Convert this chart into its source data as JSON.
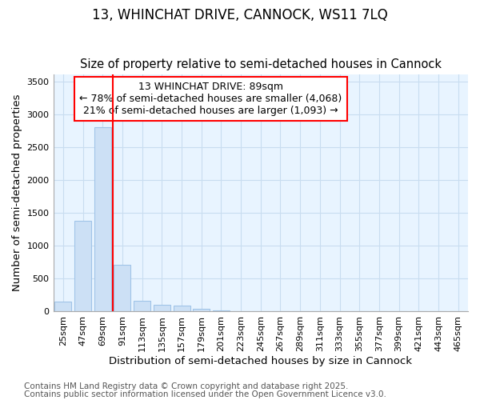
{
  "title1": "13, WHINCHAT DRIVE, CANNOCK, WS11 7LQ",
  "title2": "Size of property relative to semi-detached houses in Cannock",
  "xlabel": "Distribution of semi-detached houses by size in Cannock",
  "ylabel": "Number of semi-detached properties",
  "annotation_title": "13 WHINCHAT DRIVE: 89sqm",
  "annotation_line1": "← 78% of semi-detached houses are smaller (4,068)",
  "annotation_line2": "21% of semi-detached houses are larger (1,093) →",
  "footnote1": "Contains HM Land Registry data © Crown copyright and database right 2025.",
  "footnote2": "Contains public sector information licensed under the Open Government Licence v3.0.",
  "bins": [
    "25sqm",
    "47sqm",
    "69sqm",
    "91sqm",
    "113sqm",
    "135sqm",
    "157sqm",
    "179sqm",
    "201sqm",
    "223sqm",
    "245sqm",
    "267sqm",
    "289sqm",
    "311sqm",
    "333sqm",
    "355sqm",
    "377sqm",
    "399sqm",
    "421sqm",
    "443sqm",
    "465sqm"
  ],
  "values": [
    140,
    1380,
    2800,
    700,
    160,
    100,
    80,
    35,
    10,
    0,
    0,
    0,
    0,
    0,
    0,
    0,
    0,
    0,
    0,
    0,
    0
  ],
  "bar_color": "#cce0f5",
  "bar_edge_color": "#a0c4e8",
  "vline_color": "red",
  "vline_x": 2.5,
  "ylim": [
    0,
    3600
  ],
  "yticks": [
    0,
    500,
    1000,
    1500,
    2000,
    2500,
    3000,
    3500
  ],
  "plot_bg_color": "#e8f4ff",
  "fig_bg_color": "#ffffff",
  "grid_color": "#c8ddf0",
  "annotation_box_color": "white",
  "annotation_box_edge": "red",
  "title_fontsize": 12,
  "subtitle_fontsize": 10.5,
  "axis_label_fontsize": 9.5,
  "tick_fontsize": 8,
  "annotation_fontsize": 9,
  "footnote_fontsize": 7.5
}
